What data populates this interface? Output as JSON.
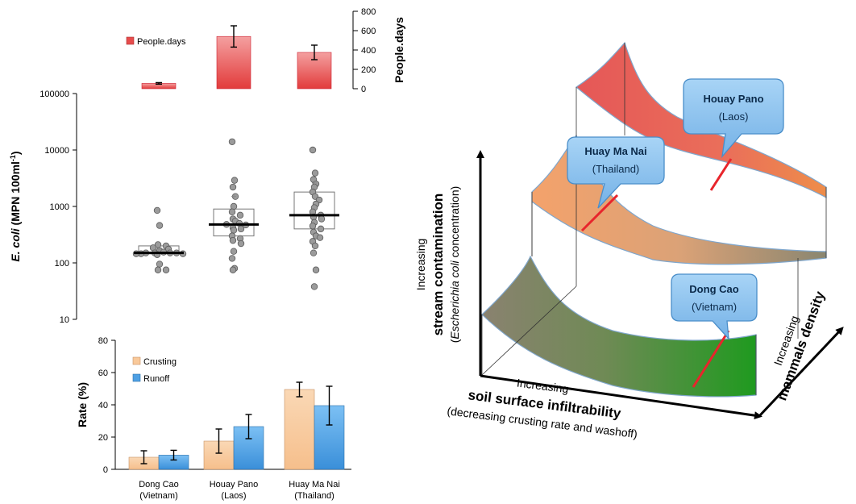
{
  "chart_data": [
    {
      "type": "bar",
      "panel": "top",
      "categories": [
        "Dong Cao (Vietnam)",
        "Houay Pano (Laos)",
        "Huay Ma Nai (Thailand)"
      ],
      "series": [
        {
          "name": "People.days",
          "color": "#e74c4c",
          "values": [
            55,
            540,
            375
          ],
          "errors": [
            8,
            110,
            75
          ]
        }
      ],
      "ylabel": "People.days",
      "ylim": [
        0,
        800
      ],
      "yticks": [
        "0",
        "200",
        "400",
        "600",
        "800"
      ],
      "ytick_values": [
        0,
        200,
        400,
        600,
        800
      ],
      "axis_side": "right",
      "legend_position": "top-left"
    },
    {
      "type": "scatter",
      "panel": "middle",
      "subtype": "box-and-points",
      "categories": [
        "Dong Cao (Vietnam)",
        "Houay Pano (Laos)",
        "Huay Ma Nai (Thailand)"
      ],
      "ylabel_italic": "E. coli",
      "ylabel_rest": " (MPN 100ml",
      "ylabel_sup": "-1",
      "ylabel_close": ")",
      "yscale": "log",
      "ylim": [
        10,
        100000
      ],
      "yticks": [
        "10",
        "100",
        "1000",
        "10000",
        "100000"
      ],
      "ytick_values": [
        10,
        100,
        1000,
        10000,
        100000
      ],
      "groups": [
        {
          "median": 150,
          "q1": 145,
          "q3": 200,
          "mean": 175,
          "points": [
            850,
            460,
            210,
            200,
            185,
            175,
            165,
            155,
            150,
            150,
            150,
            150,
            145,
            145,
            145,
            140,
            95,
            75,
            75
          ]
        },
        {
          "median": 480,
          "q1": 300,
          "q3": 900,
          "mean": 1500,
          "points": [
            14000,
            2900,
            2200,
            1500,
            1000,
            800,
            700,
            600,
            550,
            500,
            480,
            470,
            420,
            400,
            380,
            300,
            270,
            250,
            220,
            160,
            120,
            80,
            75
          ]
        },
        {
          "median": 700,
          "q1": 400,
          "q3": 1800,
          "mean": 2600,
          "points": [
            10000,
            3900,
            3000,
            2500,
            2200,
            1800,
            1500,
            1300,
            1100,
            950,
            800,
            700,
            650,
            600,
            520,
            450,
            400,
            350,
            300,
            280,
            240,
            200,
            150,
            75,
            38
          ]
        }
      ]
    },
    {
      "type": "bar",
      "panel": "bottom",
      "categories": [
        "Dong Cao (Vietnam)",
        "Houay Pano (Laos)",
        "Huay Ma Nai (Thailand)"
      ],
      "category_lines": [
        [
          "Dong Cao",
          "(Vietnam)"
        ],
        [
          "Houay Pano",
          "(Laos)"
        ],
        [
          "Huay Ma Nai",
          "(Thailand)"
        ]
      ],
      "series": [
        {
          "name": "Crusting",
          "color": "#f9c99a",
          "values": [
            7.5,
            17.5,
            49.5
          ],
          "errors": [
            4,
            7.5,
            4.5
          ]
        },
        {
          "name": "Runoff",
          "color": "#4ea0e4",
          "values": [
            8.8,
            26.5,
            39.5
          ],
          "errors": [
            3,
            7.5,
            12
          ]
        }
      ],
      "ylabel": "Rate (%)",
      "ylim": [
        0,
        80
      ],
      "yticks": [
        "0",
        "20",
        "40",
        "60",
        "80"
      ],
      "ytick_values": [
        0,
        20,
        40,
        60,
        80
      ],
      "legend_position": "top-left"
    }
  ],
  "diagram": {
    "sites": [
      {
        "name": "Houay Pano",
        "country": "(Laos)"
      },
      {
        "name": "Huay Ma Nai",
        "country": "(Thailand)"
      },
      {
        "name": "Dong Cao",
        "country": "(Vietnam)"
      }
    ],
    "axis_y": {
      "line1": "Increasing",
      "line2": "stream contamination",
      "line3_open": "(",
      "line3_italic": "Escherichia coli",
      "line3_rest": " concentration)"
    },
    "axis_x": {
      "line1": "Increasing",
      "line2": "soil surface infiltrability",
      "line3": "(decreasing crusting rate and washoff)"
    },
    "axis_z": {
      "line1": "Increasing",
      "line2": "mammals density"
    },
    "colors": {
      "callout_fill": "#8fc4ee",
      "callout_stroke": "#4a8ec9",
      "marker": "#e8252c"
    }
  }
}
